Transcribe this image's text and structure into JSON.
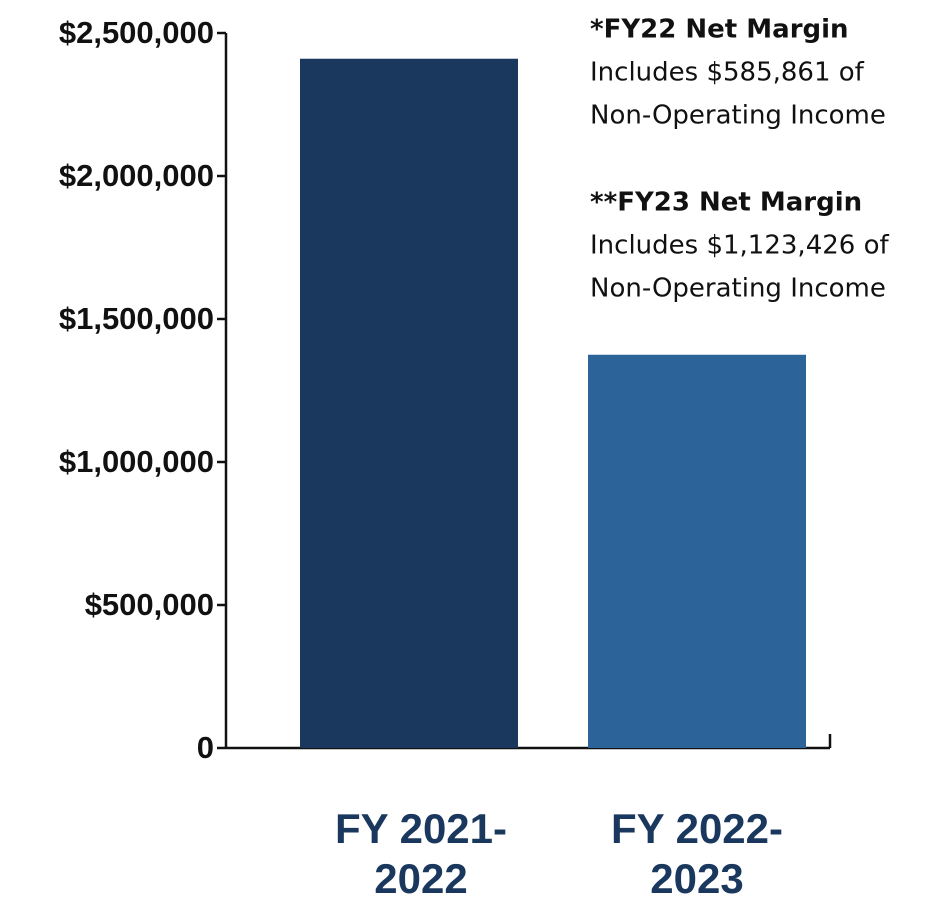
{
  "chart_data": {
    "type": "bar",
    "categories": [
      "FY 2021-2022",
      "FY 2022-2023"
    ],
    "values": [
      2410000,
      1375000
    ],
    "colors": [
      "#1a375e",
      "#2c6399"
    ],
    "ylim": [
      0,
      2500000
    ],
    "yticks": [
      0,
      {
        "value": 500000,
        "label": "$500,000"
      },
      {
        "value": 1000000,
        "label": "$1,000,000"
      },
      {
        "value": 1500000,
        "label": "$1,500,000"
      },
      {
        "value": 2000000,
        "label": "$2,000,000"
      },
      {
        "value": 2500000,
        "label": "$2,500,000"
      }
    ],
    "grid": false,
    "annotations": [
      {
        "heading": "*FY22 Net Margin",
        "lines": [
          "Includes $585,861 of",
          "Non-Operating Income"
        ]
      },
      {
        "heading": "**FY23 Net Margin",
        "lines": [
          "Includes $1,123,426 of",
          "Non-Operating Income"
        ]
      }
    ]
  }
}
